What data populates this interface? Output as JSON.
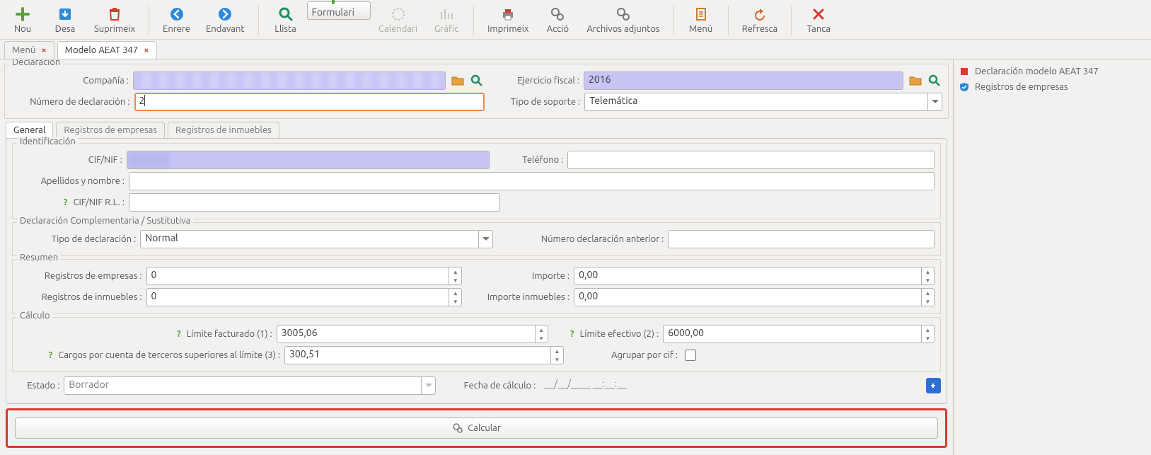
{
  "colors": {
    "accent_orange": "#e78b54",
    "blue_fill": "#c6c5f4",
    "danger_border": "#d63b2f",
    "green": "#5aa03a",
    "blue_arrow": "#2e8ad8",
    "gray_disabled": "#a9a6a2",
    "text": "#555555"
  },
  "toolbar": [
    {
      "id": "nou",
      "label": "Nou",
      "icon": "plus-green",
      "disabled": false,
      "selected": false
    },
    {
      "id": "desa",
      "label": "Desa",
      "icon": "save-blue",
      "disabled": false,
      "selected": false
    },
    {
      "id": "suprimeix",
      "label": "Suprimeix",
      "icon": "trash-red",
      "disabled": false,
      "selected": false
    },
    {
      "sep": true
    },
    {
      "id": "enrere",
      "label": "Enrere",
      "icon": "arrow-left",
      "disabled": false,
      "selected": false
    },
    {
      "id": "endavant",
      "label": "Endavant",
      "icon": "arrow-right",
      "disabled": false,
      "selected": false
    },
    {
      "sep": true
    },
    {
      "id": "llista",
      "label": "Llista",
      "icon": "search-green",
      "disabled": false,
      "selected": false
    },
    {
      "id": "formulari",
      "label": "Formulari",
      "icon": "plus-green",
      "disabled": false,
      "selected": true
    },
    {
      "id": "calendari",
      "label": "Calendari",
      "icon": "calendar",
      "disabled": true,
      "selected": false
    },
    {
      "id": "grafic",
      "label": "Gràfic",
      "icon": "chart",
      "disabled": true,
      "selected": false
    },
    {
      "sep": true
    },
    {
      "id": "imprimeix",
      "label": "Imprimeix",
      "icon": "print",
      "disabled": false,
      "selected": false
    },
    {
      "id": "accio",
      "label": "Acció",
      "icon": "gears",
      "disabled": false,
      "selected": false
    },
    {
      "id": "adjunts",
      "label": "Archivos adjuntos",
      "icon": "attach",
      "disabled": false,
      "selected": false,
      "wide": true
    },
    {
      "sep": true
    },
    {
      "id": "menu",
      "label": "Menú",
      "icon": "clipboard",
      "disabled": false,
      "selected": false
    },
    {
      "sep": true
    },
    {
      "id": "refresca",
      "label": "Refresca",
      "icon": "refresh",
      "disabled": false,
      "selected": false
    },
    {
      "sep": true
    },
    {
      "id": "tanca",
      "label": "Tanca",
      "icon": "close-red",
      "disabled": false,
      "selected": false
    }
  ],
  "doc_tabs": [
    {
      "label": "Menú",
      "active": false
    },
    {
      "label": "Modelo AEAT 347",
      "active": true
    }
  ],
  "side_panel": [
    {
      "label": "Declaración modelo AEAT 347",
      "icon": "red-square"
    },
    {
      "label": "Registros de empresas",
      "icon": "blue-shield"
    }
  ],
  "declaracion": {
    "legend": "Declaración",
    "compania_label": "Compañía :",
    "compania_value": "",
    "ejercicio_label": "Ejercicio fiscal :",
    "ejercicio_value": "2016",
    "num_decl_label": "Número de declaración :",
    "num_decl_value": "2",
    "tipo_soporte_label": "Tipo de soporte :",
    "tipo_soporte_value": "Telemática"
  },
  "inner_tabs": {
    "general": "General",
    "reg_empresas": "Registros de empresas",
    "reg_inmuebles": "Registros de inmuebles"
  },
  "identificacion": {
    "legend": "Identificación",
    "cif_label": "CIF/NIF :",
    "cif_value": "",
    "tel_label": "Teléfono :",
    "tel_value": "",
    "apenom_label": "Apellidos y nombre :",
    "apenom_value": "",
    "cif_rl_label": "CIF/NIF R.L. :",
    "cif_rl_value": ""
  },
  "complementaria": {
    "legend": "Declaración Complementaria / Sustitutiva",
    "tipo_label": "Tipo de declaración :",
    "tipo_value": "Normal",
    "num_ant_label": "Número declaración anterior :",
    "num_ant_value": ""
  },
  "resumen": {
    "legend": "Resumen",
    "reg_emp_label": "Registros de empresas :",
    "reg_emp_value": "0",
    "importe_label": "Importe :",
    "importe_value": "0,00",
    "reg_inm_label": "Registros de inmuebles :",
    "reg_inm_value": "0",
    "imp_inm_label": "Importe inmuebles :",
    "imp_inm_value": "0,00"
  },
  "calculo": {
    "legend": "Cálculo",
    "lim_fact_label": "Límite facturado (1) :",
    "lim_fact_value": "3005,06",
    "lim_efec_label": "Límite efectivo (2) :",
    "lim_efec_value": "6000,00",
    "cargos_label": "Cargos por cuenta de terceros superiores al límite (3) :",
    "cargos_value": "300,51",
    "agrupar_label": "Agrupar por cif :",
    "agrupar_checked": false
  },
  "footer": {
    "estado_label": "Estado :",
    "estado_value": "Borrador",
    "fecha_label": "Fecha de cálculo :",
    "fecha_value": "__/__/____   __:__:__",
    "calcular_label": "Calcular"
  }
}
